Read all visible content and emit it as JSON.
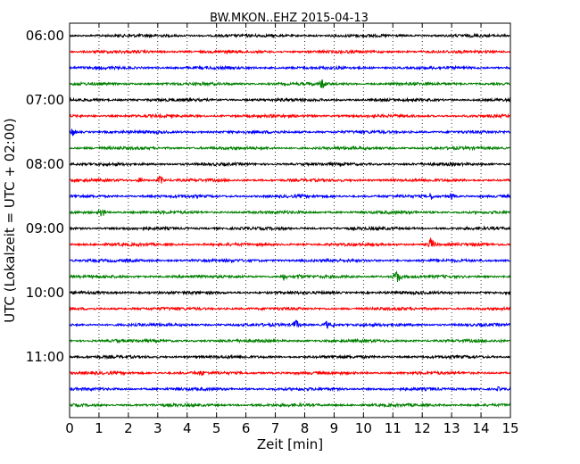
{
  "chart_data": {
    "type": "line",
    "title": "BW.MKON..EHZ 2015-04-13",
    "xlabel": "Zeit  [min]",
    "ylabel": "UTC (Lokalzeit = UTC + 02:00)",
    "xlim": [
      0,
      15
    ],
    "x_ticks": [
      "0",
      "1",
      "2",
      "3",
      "4",
      "5",
      "6",
      "7",
      "8",
      "9",
      "10",
      "11",
      "12",
      "13",
      "14",
      "15"
    ],
    "y_ticks": [
      {
        "label": "06:00",
        "row": 0
      },
      {
        "label": "07:00",
        "row": 4
      },
      {
        "label": "08:00",
        "row": 8
      },
      {
        "label": "09:00",
        "row": 12
      },
      {
        "label": "10:00",
        "row": 16
      },
      {
        "label": "11:00",
        "row": 20
      }
    ],
    "grid": {
      "x": true,
      "y": false,
      "style": "dotted"
    },
    "row_minutes": 15,
    "row_count": 24,
    "trace_colors": [
      "#000000",
      "#ff0000",
      "#0000ff",
      "#008000"
    ],
    "events": [
      {
        "row": 3,
        "minute": 8.6,
        "amp": 7
      },
      {
        "row": 6,
        "minute": 0.1,
        "amp": 6
      },
      {
        "row": 9,
        "minute": 3.1,
        "amp": 6
      },
      {
        "row": 9,
        "minute": 2.4,
        "amp": 4
      },
      {
        "row": 10,
        "minute": 12.3,
        "amp": 5
      },
      {
        "row": 10,
        "minute": 13.0,
        "amp": 5
      },
      {
        "row": 10,
        "minute": 7.9,
        "amp": 3
      },
      {
        "row": 11,
        "minute": 1.1,
        "amp": 7
      },
      {
        "row": 13,
        "minute": 12.3,
        "amp": 9
      },
      {
        "row": 15,
        "minute": 11.15,
        "amp": 9
      },
      {
        "row": 15,
        "minute": 7.3,
        "amp": 5
      },
      {
        "row": 15,
        "minute": 7.8,
        "amp": 4
      },
      {
        "row": 18,
        "minute": 7.7,
        "amp": 7
      },
      {
        "row": 18,
        "minute": 8.75,
        "amp": 5
      },
      {
        "row": 18,
        "minute": 8.95,
        "amp": 3
      },
      {
        "row": 19,
        "minute": 1.6,
        "amp": 3
      },
      {
        "row": 21,
        "minute": 4.5,
        "amp": 4
      },
      {
        "row": 22,
        "minute": 14.6,
        "amp": 3
      }
    ]
  }
}
